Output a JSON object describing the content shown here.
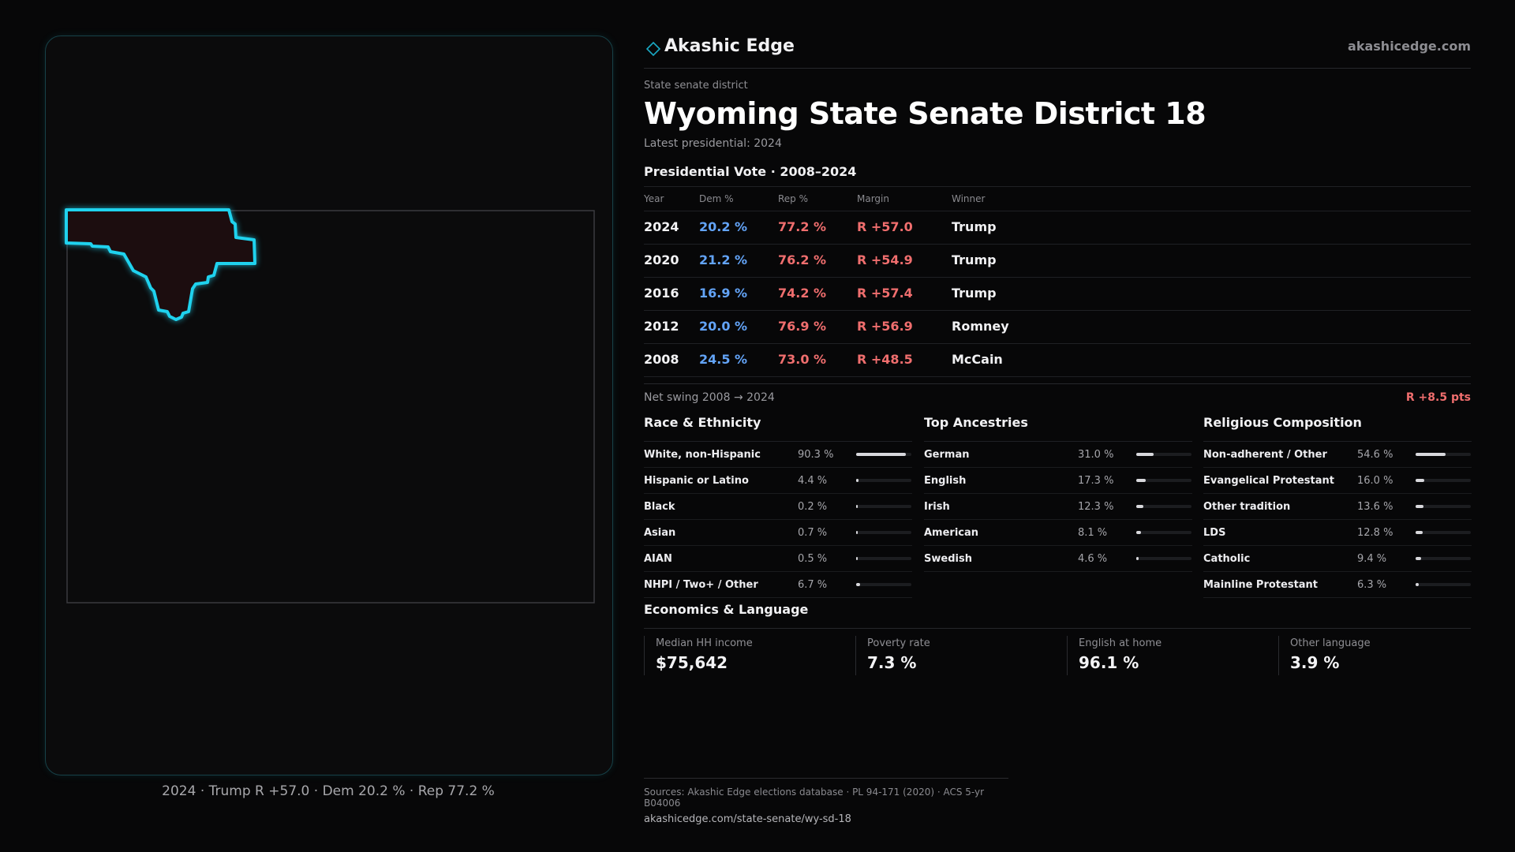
{
  "brand": {
    "name": "Akashic Edge",
    "url": "akashicedge.com",
    "accent": "#1aa9c4",
    "icon": "diamond-icon"
  },
  "header": {
    "eyebrow": "State senate district",
    "title": "Wyoming State Senate District 18",
    "subtitle": "Latest presidential: 2024"
  },
  "map": {
    "caption": "2024 · Trump R +57.0 · Dem 20.2 % · Rep 77.2 %",
    "highlight_color": "#1fd2ee",
    "district_fill": "#1c0d0f"
  },
  "presidential": {
    "heading": "Presidential Vote · 2008–2024",
    "columns": [
      "Year",
      "Dem %",
      "Rep %",
      "Margin",
      "Winner"
    ],
    "rows": [
      {
        "year": "2024",
        "dem": "20.2 %",
        "rep": "77.2 %",
        "margin": "R +57.0",
        "winner": "Trump"
      },
      {
        "year": "2020",
        "dem": "21.2 %",
        "rep": "76.2 %",
        "margin": "R +54.9",
        "winner": "Trump"
      },
      {
        "year": "2016",
        "dem": "16.9 %",
        "rep": "74.2 %",
        "margin": "R +57.4",
        "winner": "Trump"
      },
      {
        "year": "2012",
        "dem": "20.0 %",
        "rep": "76.9 %",
        "margin": "R +56.9",
        "winner": "Romney"
      },
      {
        "year": "2008",
        "dem": "24.5 %",
        "rep": "73.0 %",
        "margin": "R +48.5",
        "winner": "McCain"
      }
    ],
    "swing_label": "Net swing 2008 → 2024",
    "swing_value": "R +8.5 pts",
    "dem_color": "#63a4f8",
    "rep_color": "#f06e6e"
  },
  "demographics": [
    {
      "heading": "Race & Ethnicity",
      "items": [
        {
          "name": "White, non-Hispanic",
          "pct": "90.3 %",
          "value": 90.3
        },
        {
          "name": "Hispanic or Latino",
          "pct": "4.4 %",
          "value": 4.4
        },
        {
          "name": "Black",
          "pct": "0.2 %",
          "value": 0.2
        },
        {
          "name": "Asian",
          "pct": "0.7 %",
          "value": 0.7
        },
        {
          "name": "AIAN",
          "pct": "0.5 %",
          "value": 0.5
        },
        {
          "name": "NHPI / Two+ / Other",
          "pct": "6.7 %",
          "value": 6.7
        }
      ]
    },
    {
      "heading": "Top Ancestries",
      "items": [
        {
          "name": "German",
          "pct": "31.0 %",
          "value": 31.0
        },
        {
          "name": "English",
          "pct": "17.3 %",
          "value": 17.3
        },
        {
          "name": "Irish",
          "pct": "12.3 %",
          "value": 12.3
        },
        {
          "name": "American",
          "pct": "8.1 %",
          "value": 8.1
        },
        {
          "name": "Swedish",
          "pct": "4.6 %",
          "value": 4.6
        }
      ]
    },
    {
      "heading": "Religious Composition",
      "items": [
        {
          "name": "Non-adherent / Other",
          "pct": "54.6 %",
          "value": 54.6
        },
        {
          "name": "Evangelical Protestant",
          "pct": "16.0 %",
          "value": 16.0
        },
        {
          "name": "Other tradition",
          "pct": "13.6 %",
          "value": 13.6
        },
        {
          "name": "LDS",
          "pct": "12.8 %",
          "value": 12.8
        },
        {
          "name": "Catholic",
          "pct": "9.4 %",
          "value": 9.4
        },
        {
          "name": "Mainline Protestant",
          "pct": "6.3 %",
          "value": 6.3
        }
      ]
    }
  ],
  "economics": {
    "heading": "Economics & Language",
    "metrics": [
      {
        "label": "Median HH income",
        "value": "$75,642"
      },
      {
        "label": "Poverty rate",
        "value": "7.3 %"
      },
      {
        "label": "English at home",
        "value": "96.1 %"
      },
      {
        "label": "Other language",
        "value": "3.9 %"
      }
    ]
  },
  "footer": {
    "sources": "Sources: Akashic Edge elections database · PL 94-171 (2020) · ACS 5-yr B04006",
    "link": "akashicedge.com/state-senate/wy-sd-18"
  }
}
